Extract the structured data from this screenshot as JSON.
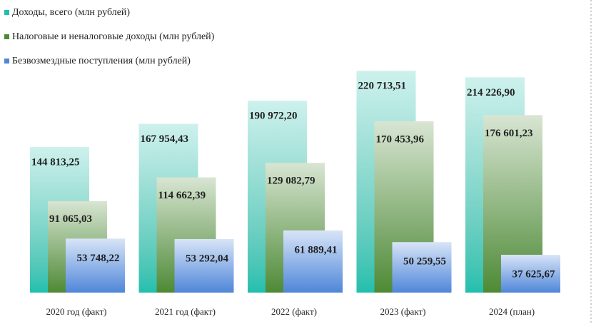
{
  "chart_data": {
    "type": "bar",
    "categories": [
      "2020 год (факт)",
      "2021 год (факт)",
      "2022 (факт)",
      "2023 (факт)",
      "2024 (план)"
    ],
    "series": [
      {
        "name": "Доходы, всего (млн рублей)",
        "color": "#1fbfae",
        "values": [
          144813.25,
          167954.43,
          190972.2,
          220713.51,
          214226.9
        ],
        "value_labels": [
          "144 813,25",
          "167 954,43",
          "190 972,20",
          "220 713,51",
          "214 226,90"
        ]
      },
      {
        "name": "Налоговые и неналоговые доходы (млн рублей)",
        "color": "#4e8a34",
        "values": [
          91065.03,
          114662.39,
          129082.79,
          170453.96,
          176601.23
        ],
        "value_labels": [
          "91 065,03",
          "114 662,39",
          "129 082,79",
          "170 453,96",
          "176 601,23"
        ]
      },
      {
        "name": "Безвозмездные поступления (млн рублей)",
        "color": "#4f86d8",
        "values": [
          53748.22,
          53292.04,
          61889.41,
          50259.55,
          37625.67
        ],
        "value_labels": [
          "53 748,22",
          "53 292,04",
          "61 889,41",
          "50 259,55",
          "37 625,67"
        ]
      }
    ],
    "ylim": [
      0,
      250000
    ]
  }
}
